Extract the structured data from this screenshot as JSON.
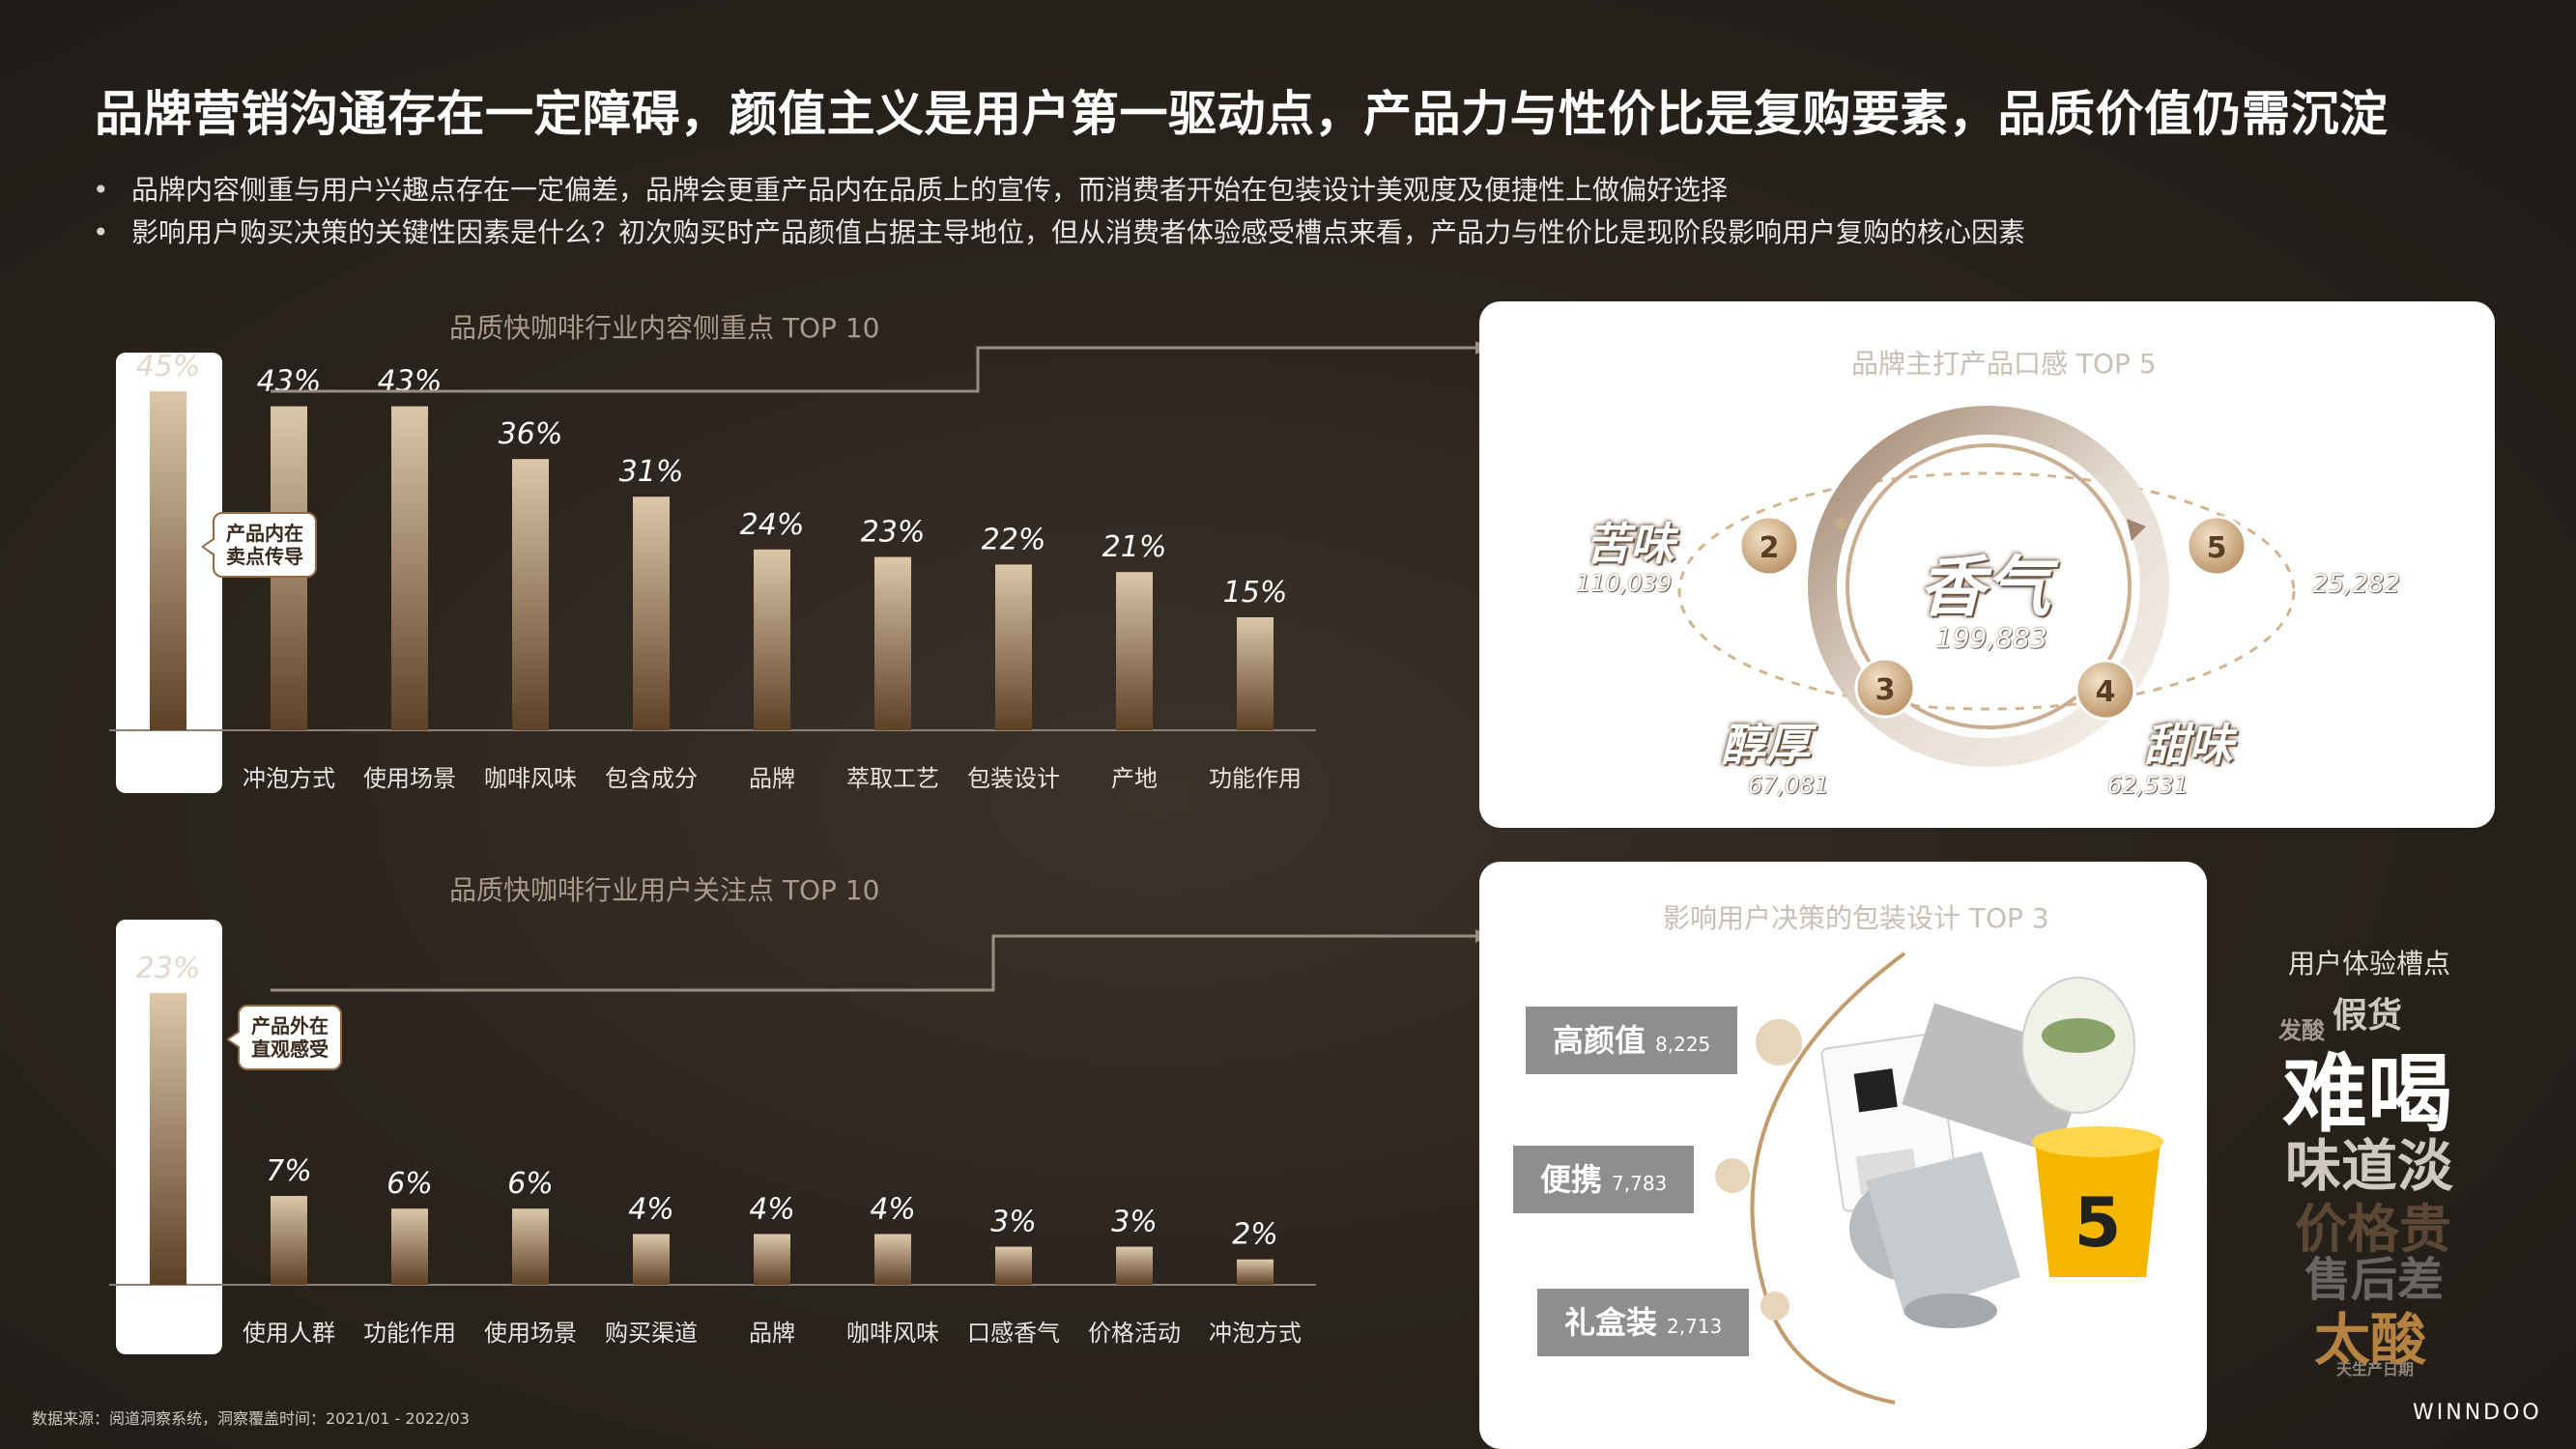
{
  "title": "品牌营销沟通存在一定障碍，颜值主义是用户第一驱动点，产品力与性价比是复购要素，品质价值仍需沉淀",
  "bullets": [
    "品牌内容侧重与用户兴趣点存在一定偏差，品牌会更重产品内在品质上的宣传，而消费者开始在包装设计美观度及便捷性上做偏好选择",
    "影响用户购买决策的关键性因素是什么？初次购买时产品颜值占据主导地位，但从消费者体验感受槽点来看，产品力与性价比是现阶段影响用户复购的核心因素"
  ],
  "chart_data": [
    {
      "type": "bar",
      "title": "品质快咖啡行业内容侧重点 TOP 10",
      "categories": [
        "",
        "冲泡方式",
        "使用场景",
        "咖啡风味",
        "包含成分",
        "品牌",
        "萃取工艺",
        "包装设计",
        "产地",
        "功能作用"
      ],
      "values": [
        45,
        43,
        43,
        36,
        31,
        24,
        23,
        22,
        21,
        15
      ],
      "value_labels": [
        "45%",
        "43%",
        "43%",
        "36%",
        "31%",
        "24%",
        "23%",
        "22%",
        "21%",
        "15%"
      ],
      "ylim": [
        0,
        50
      ],
      "highlight_index": 0,
      "callout": [
        "产品内在",
        "卖点传导"
      ]
    },
    {
      "type": "bar",
      "title": "品质快咖啡行业用户关注点 TOP 10",
      "categories": [
        "",
        "使用人群",
        "功能作用",
        "使用场景",
        "购买渠道",
        "品牌",
        "咖啡风味",
        "口感香气",
        "价格活动",
        "冲泡方式"
      ],
      "values": [
        23,
        7,
        6,
        6,
        4,
        4,
        4,
        3,
        3,
        2
      ],
      "value_labels": [
        "23%",
        "7%",
        "6%",
        "6%",
        "4%",
        "4%",
        "4%",
        "3%",
        "3%",
        "2%"
      ],
      "ylim": [
        0,
        25.5
      ],
      "highlight_index": 0,
      "callout": [
        "产品外在",
        "直观感受"
      ]
    },
    {
      "type": "ranking",
      "title": "品牌主打产品口感 TOP 5",
      "items": [
        {
          "rank": "1",
          "name": "香气",
          "count": "199,883"
        },
        {
          "rank": "2",
          "name": "苦味",
          "count": "110,039"
        },
        {
          "rank": "3",
          "name": "醇厚",
          "count": "67,081"
        },
        {
          "rank": "4",
          "name": "甜味",
          "count": "62,531"
        },
        {
          "rank": "5",
          "name": "",
          "count": "25,282"
        }
      ]
    },
    {
      "type": "ranking",
      "title": "影响用户决策的包装设计 TOP 3",
      "items": [
        {
          "name": "高颜值",
          "count": "8,225"
        },
        {
          "name": "便携",
          "count": "7,783"
        },
        {
          "name": "礼盒装",
          "count": "2,713"
        }
      ]
    }
  ],
  "pain_points": {
    "title": "用户体验槽点",
    "words": [
      "假货",
      "发酸",
      "难喝",
      "味道淡",
      "价格贵",
      "售后差",
      "太酸",
      "天生产日期"
    ]
  },
  "footer": "数据来源：阅道洞察系统，洞察覆盖时间：2021/01 - 2022/03",
  "brand": "WINNDOO",
  "colors": {
    "bar_top": "#dcc7a8",
    "bar_bottom": "#5e4127",
    "accent": "#8f6a45",
    "background": "#2b241e"
  }
}
